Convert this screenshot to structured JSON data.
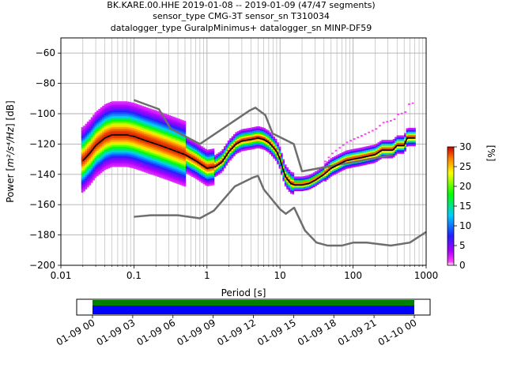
{
  "chart_data": [
    {
      "type": "heatmap",
      "title_lines": [
        "BK.KARE.00.HHE   2019-01-08 -- 2019-01-09  (47/47 segments)",
        "sensor_type CMG-3T sensor_sn T310034",
        "datalogger_type GuralpMinimus+ datalogger_sn MINP-DF59"
      ],
      "xlabel": "Period [s]",
      "ylabel_main": "Power [",
      "ylabel_math": "m²/s⁴/Hz",
      "ylabel_end": "] [dB]",
      "xscale": "log",
      "xlim": [
        0.01,
        1000
      ],
      "ylim": [
        -200,
        -50
      ],
      "grid": true,
      "x_ticks": [
        {
          "v": 0.01,
          "label": "0.01"
        },
        {
          "v": 0.1,
          "label": "0.1"
        },
        {
          "v": 1,
          "label": "1"
        },
        {
          "v": 10,
          "label": "10"
        },
        {
          "v": 100,
          "label": "100"
        },
        {
          "v": 1000,
          "label": "1000"
        }
      ],
      "y_ticks": [
        {
          "v": -60,
          "label": "−60"
        },
        {
          "v": -80,
          "label": "−80"
        },
        {
          "v": -100,
          "label": "−100"
        },
        {
          "v": -120,
          "label": "−120"
        },
        {
          "v": -140,
          "label": "−140"
        },
        {
          "v": -160,
          "label": "−160"
        },
        {
          "v": -180,
          "label": "−180"
        },
        {
          "v": -200,
          "label": "−200"
        }
      ],
      "nhnm": {
        "x": [
          0.1,
          0.17,
          0.4,
          0.8,
          1.24,
          2.4,
          4.3,
          5.0,
          6.0,
          10.0,
          12.0,
          15.6,
          21.9,
          31.6,
          45.0,
          70.0,
          101.0,
          154.0,
          328.0,
          600.0,
          1000.0
        ],
        "y": [
          -168,
          -167,
          -167,
          -169,
          -164,
          -148,
          -142,
          -141,
          -150,
          -163,
          -166,
          -162,
          -177,
          -185,
          -187,
          -187,
          -185,
          -185,
          -187,
          -185,
          -178
        ]
      },
      "nlnm": {
        "x": [
          0.1,
          0.22,
          0.32,
          0.8,
          3.8,
          4.6,
          6.3,
          7.9,
          15.4,
          20.0,
          354.8
        ],
        "y": [
          -91,
          -97,
          -110,
          -120,
          -98,
          -96,
          -101,
          -113,
          -120,
          -138,
          -127
        ]
      },
      "mean_curve": {
        "x": [
          0.02,
          0.025,
          0.03,
          0.04,
          0.05,
          0.06,
          0.08,
          0.1,
          0.15,
          0.2,
          0.3,
          0.5,
          0.7,
          1.0,
          1.3,
          1.6,
          2.0,
          2.5,
          3.0,
          4.0,
          5.0,
          6.0,
          7.0,
          8.0,
          9.0,
          10.0,
          11.0,
          12.0,
          14.0,
          16.0,
          20.0,
          25.0,
          30.0,
          40.0,
          50.0,
          60.0,
          80.0,
          100.0,
          130.0,
          160.0,
          200.0,
          250.0,
          300.0,
          350.0,
          400.0,
          450.0,
          500.0,
          550.0,
          600.0,
          700.0
        ],
        "y": [
          -131,
          -126,
          -121,
          -116,
          -114,
          -114,
          -114,
          -115,
          -118,
          -120,
          -123,
          -127,
          -131,
          -136,
          -135,
          -132,
          -125,
          -120,
          -118,
          -117,
          -116,
          -117,
          -119,
          -122,
          -125,
          -130,
          -137,
          -142,
          -146,
          -147,
          -147,
          -146,
          -144,
          -140,
          -136,
          -134,
          -131,
          -130,
          -129,
          -128,
          -127,
          -124,
          -124,
          -124,
          -121,
          -121,
          -121,
          -116,
          -116,
          -116
        ]
      },
      "colorbar": {
        "label": "[%]",
        "ticks": [
          {
            "v": 0,
            "label": "0"
          },
          {
            "v": 5,
            "label": "5"
          },
          {
            "v": 10,
            "label": "10"
          },
          {
            "v": 15,
            "label": "15"
          },
          {
            "v": 20,
            "label": "20"
          },
          {
            "v": 25,
            "label": "25"
          },
          {
            "v": 30,
            "label": "30"
          }
        ],
        "range": [
          0,
          30
        ]
      },
      "colors": {
        "noise_model": "#6e6e6e",
        "mean": "#000000",
        "grid": "#b0b0b0",
        "coverage_green": "#008000",
        "coverage_blue": "#0000ff"
      }
    },
    {
      "type": "timeline",
      "x_ticks": [
        "01-09 00",
        "01-09 03",
        "01-09 06",
        "01-09 09",
        "01-09 12",
        "01-09 15",
        "01-09 18",
        "01-09 21",
        "01-10 00"
      ]
    }
  ]
}
